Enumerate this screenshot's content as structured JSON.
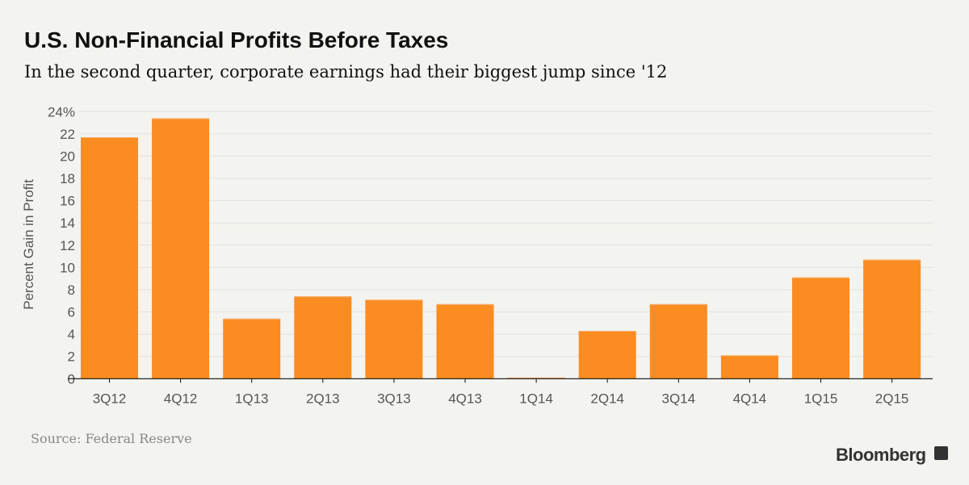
{
  "header": {
    "title": "U.S. Non-Financial Profits Before Taxes",
    "subtitle": "In the second quarter, corporate earnings had their biggest jump since '12"
  },
  "footer": {
    "source": "Source: Federal Reserve",
    "logo": "Bloomberg"
  },
  "chart_data": {
    "type": "bar",
    "title": "U.S. Non-Financial Profits Before Taxes",
    "subtitle": "In the second quarter, corporate earnings had their biggest jump since '12",
    "ylabel": "Percent Gain in Profit",
    "xlabel": "",
    "ylim": [
      0,
      24
    ],
    "yticks": [
      "0",
      "2",
      "4",
      "6",
      "8",
      "10",
      "12",
      "14",
      "16",
      "18",
      "20",
      "22",
      "24%"
    ],
    "grid": true,
    "bar_color": "#fa8c21",
    "categories": [
      "3Q12",
      "4Q12",
      "1Q13",
      "2Q13",
      "3Q13",
      "4Q13",
      "1Q14",
      "2Q14",
      "3Q14",
      "4Q14",
      "1Q15",
      "2Q15"
    ],
    "values": [
      21.7,
      23.4,
      5.4,
      7.4,
      7.1,
      6.7,
      0.1,
      4.3,
      6.7,
      2.1,
      9.1,
      10.7
    ]
  }
}
